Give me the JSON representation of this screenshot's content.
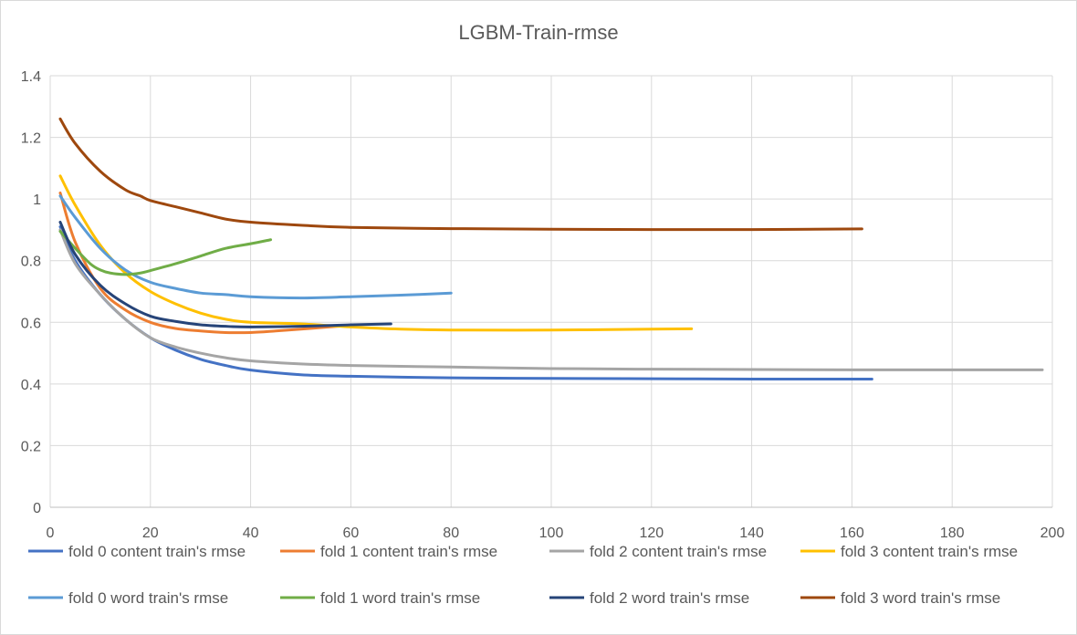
{
  "chart_data": {
    "type": "line",
    "title": "LGBM-Train-rmse",
    "xlabel": "",
    "ylabel": "",
    "xlim": [
      0,
      200
    ],
    "ylim": [
      0,
      1.4
    ],
    "xticks": [
      "0",
      "20",
      "40",
      "60",
      "80",
      "100",
      "120",
      "140",
      "160",
      "180",
      "200"
    ],
    "yticks": [
      "0",
      "0.2",
      "0.4",
      "0.6",
      "0.8",
      "1",
      "1.2",
      "1.4"
    ],
    "grid": true,
    "legend_position": "bottom",
    "series": [
      {
        "name": "fold 0 content train's rmse",
        "color": "#4472C4",
        "x": [
          2,
          5,
          10,
          15,
          20,
          25,
          30,
          35,
          40,
          50,
          60,
          70,
          80,
          100,
          120,
          140,
          164
        ],
        "y": [
          0.91,
          0.8,
          0.69,
          0.61,
          0.55,
          0.51,
          0.48,
          0.46,
          0.445,
          0.43,
          0.425,
          0.422,
          0.42,
          0.418,
          0.417,
          0.416,
          0.416
        ]
      },
      {
        "name": "fold 1 content train's rmse",
        "color": "#ED7D31",
        "x": [
          2,
          5,
          10,
          15,
          20,
          25,
          30,
          35,
          40,
          45,
          50,
          55,
          60
        ],
        "y": [
          1.02,
          0.86,
          0.71,
          0.64,
          0.6,
          0.58,
          0.572,
          0.567,
          0.567,
          0.572,
          0.578,
          0.584,
          0.59
        ]
      },
      {
        "name": "fold 2 content train's rmse",
        "color": "#A5A5A5",
        "x": [
          2,
          5,
          10,
          15,
          20,
          25,
          30,
          35,
          40,
          50,
          60,
          80,
          100,
          120,
          140,
          160,
          198
        ],
        "y": [
          0.9,
          0.79,
          0.69,
          0.61,
          0.55,
          0.52,
          0.5,
          0.485,
          0.475,
          0.465,
          0.46,
          0.455,
          0.45,
          0.448,
          0.447,
          0.446,
          0.446
        ]
      },
      {
        "name": "fold 3 content train's rmse",
        "color": "#FFC000",
        "x": [
          2,
          5,
          10,
          15,
          20,
          25,
          30,
          35,
          40,
          50,
          60,
          70,
          80,
          100,
          120,
          128
        ],
        "y": [
          1.075,
          0.98,
          0.85,
          0.76,
          0.7,
          0.66,
          0.63,
          0.61,
          0.6,
          0.595,
          0.585,
          0.578,
          0.575,
          0.575,
          0.578,
          0.579
        ]
      },
      {
        "name": "fold 0 word train's rmse",
        "color": "#5B9BD5",
        "x": [
          2,
          5,
          10,
          15,
          20,
          25,
          30,
          35,
          40,
          50,
          60,
          70,
          80
        ],
        "y": [
          1.01,
          0.94,
          0.84,
          0.77,
          0.73,
          0.71,
          0.695,
          0.69,
          0.683,
          0.679,
          0.683,
          0.688,
          0.695
        ]
      },
      {
        "name": "fold 1 word train's rmse",
        "color": "#70AD47",
        "x": [
          2,
          5,
          8,
          10,
          12,
          15,
          18,
          20,
          25,
          30,
          35,
          40,
          44
        ],
        "y": [
          0.895,
          0.84,
          0.79,
          0.77,
          0.76,
          0.755,
          0.76,
          0.768,
          0.79,
          0.815,
          0.84,
          0.855,
          0.868
        ]
      },
      {
        "name": "fold 2 word train's rmse",
        "color": "#264478",
        "x": [
          2,
          5,
          10,
          15,
          20,
          25,
          30,
          35,
          40,
          50,
          60,
          68
        ],
        "y": [
          0.925,
          0.82,
          0.72,
          0.66,
          0.62,
          0.603,
          0.592,
          0.587,
          0.585,
          0.587,
          0.592,
          0.595
        ]
      },
      {
        "name": "fold 3 word train's rmse",
        "color": "#9E480E",
        "x": [
          2,
          5,
          10,
          15,
          18,
          20,
          25,
          30,
          35,
          40,
          50,
          60,
          80,
          100,
          120,
          140,
          162
        ],
        "y": [
          1.26,
          1.18,
          1.09,
          1.03,
          1.01,
          0.995,
          0.975,
          0.955,
          0.935,
          0.925,
          0.915,
          0.908,
          0.904,
          0.902,
          0.901,
          0.901,
          0.903
        ]
      }
    ]
  }
}
